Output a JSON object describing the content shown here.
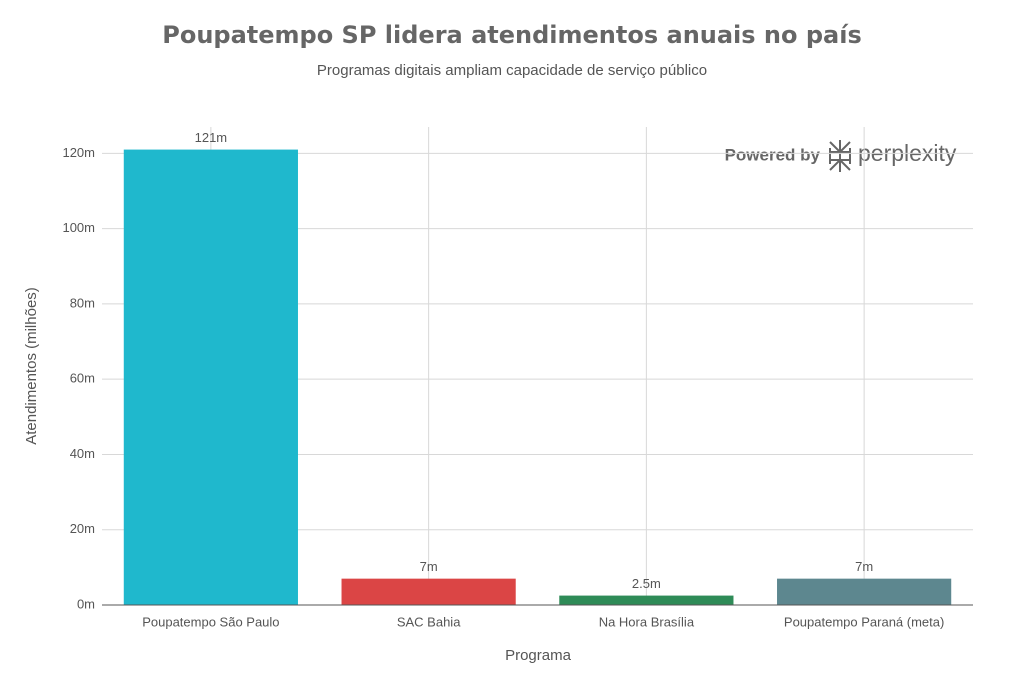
{
  "chart_data": {
    "type": "bar",
    "title": "Poupatempo SP lidera atendimentos anuais no país",
    "subtitle": "Programas digitais ampliam capacidade de serviço público",
    "x_label": "Programa",
    "y_label": "Atendimentos (milhões)",
    "watermark_prefix": "Powered by",
    "watermark_brand": "perplexity",
    "categories": [
      "Poupatempo São Paulo",
      "SAC Bahia",
      "Na Hora Brasília",
      "Poupatempo Paraná (meta)"
    ],
    "values": [
      121,
      7,
      2.5,
      7
    ],
    "value_labels": [
      "121m",
      "7m",
      "2.5m",
      "7m"
    ],
    "colors": [
      "#1FB8CD",
      "#DB4545",
      "#2E8B57",
      "#5D878F"
    ],
    "ylim": [
      0,
      127
    ],
    "yticks": [
      {
        "value": 0,
        "label": "0m"
      },
      {
        "value": 20,
        "label": "20m"
      },
      {
        "value": 40,
        "label": "40m"
      },
      {
        "value": 60,
        "label": "60m"
      },
      {
        "value": 80,
        "label": "80m"
      },
      {
        "value": 100,
        "label": "100m"
      },
      {
        "value": 120,
        "label": "120m"
      }
    ],
    "grid": true
  }
}
